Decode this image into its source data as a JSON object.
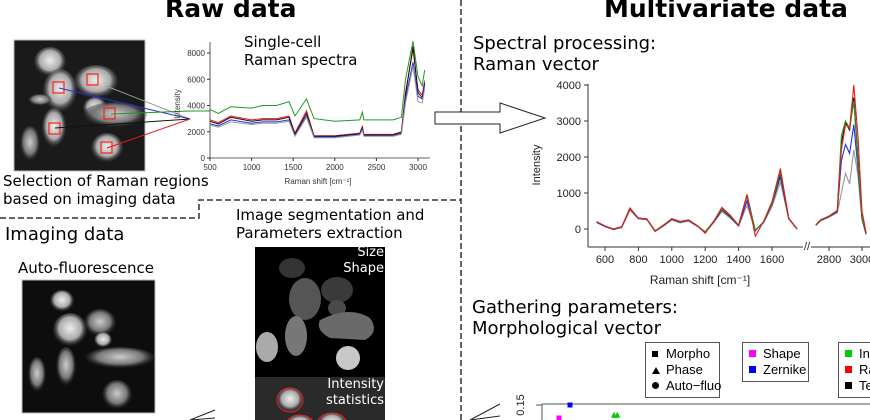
{
  "titles": {
    "raw": "Raw data",
    "multivariate": "Multivariate data"
  },
  "raw": {
    "selection_caption_1": "Selection of Raman regions",
    "selection_caption_2": "based on imaging data",
    "spectra_caption_1": "Single-cell",
    "spectra_caption_2": "Raman spectra"
  },
  "imaging": {
    "heading": "Imaging data",
    "autofluo_label": "Auto-fluorescence",
    "segmentation_1": "Image segmentation and",
    "segmentation_2": "Parameters extraction",
    "size_label": "Size",
    "shape_label": "Shape",
    "intensity_label": "Intensity",
    "statistics_label": "statistics"
  },
  "multivariate": {
    "spectral_1": "Spectral processing:",
    "spectral_2": "Raman vector",
    "gathering_1": "Gathering parameters:",
    "gathering_2": "Morphological vector",
    "legend_markers": [
      "Morpho",
      "Phase",
      "Auto−fluo"
    ],
    "legend_groups": [
      {
        "label": "Shape",
        "color": "#ff00ff"
      },
      {
        "label": "Zernike",
        "color": "#0000ff"
      }
    ],
    "legend_groups_2": [
      {
        "label": "In",
        "color": "#00cc00"
      },
      {
        "label": "Ra",
        "color": "#ff0000"
      },
      {
        "label": "Te",
        "color": "#000000"
      }
    ]
  },
  "colors": {
    "red": "#e8191c",
    "blue": "#2233dd",
    "green": "#229922",
    "black": "#111111",
    "gray": "#999999",
    "roi": "#ff2020"
  },
  "chart_data": [
    {
      "type": "line",
      "xlabel": "Raman shift [cm⁻¹]",
      "ylabel": "Intensity",
      "xlim": [
        500,
        3100
      ],
      "ylim": [
        0,
        9000
      ],
      "xticks": [
        500,
        1000,
        1500,
        2000,
        2500,
        3000
      ],
      "yticks": [
        0,
        2000,
        4000,
        6000,
        8000
      ],
      "x": [
        500,
        600,
        750,
        1000,
        1130,
        1300,
        1450,
        1520,
        1660,
        1750,
        2000,
        2300,
        2330,
        2350,
        2700,
        2800,
        2850,
        2940,
        3000,
        3050,
        3080
      ],
      "series": [
        {
          "color": "green",
          "values": [
            3700,
            3400,
            3900,
            3800,
            4000,
            4000,
            4300,
            3200,
            4500,
            3000,
            2800,
            2900,
            3500,
            2900,
            2900,
            3100,
            6000,
            8900,
            6200,
            5500,
            6700
          ]
        },
        {
          "color": "red",
          "values": [
            2900,
            2700,
            3200,
            2900,
            3000,
            3000,
            3200,
            1900,
            3600,
            1700,
            1700,
            1900,
            2400,
            1800,
            1800,
            2000,
            5000,
            8300,
            5200,
            4800,
            5900
          ]
        },
        {
          "color": "black",
          "values": [
            2800,
            2600,
            3100,
            2800,
            2900,
            2900,
            3100,
            1800,
            3400,
            1650,
            1650,
            1850,
            2300,
            1750,
            1750,
            1950,
            4800,
            8500,
            5000,
            4600,
            5700
          ]
        },
        {
          "color": "blue",
          "values": [
            2600,
            2450,
            2900,
            2650,
            2750,
            2750,
            2900,
            1700,
            3200,
            1600,
            1600,
            1800,
            2200,
            1700,
            1700,
            1850,
            4500,
            7300,
            4700,
            4500,
            5600
          ]
        },
        {
          "color": "gray",
          "values": [
            2500,
            2350,
            2750,
            2550,
            2650,
            2650,
            2800,
            1650,
            3100,
            1550,
            1550,
            1750,
            2100,
            1650,
            1650,
            1800,
            4200,
            7000,
            4300,
            4200,
            5300
          ]
        }
      ]
    },
    {
      "type": "line",
      "xlabel": "Raman shift [cm⁻¹]",
      "ylabel": "Intensity",
      "ylim": [
        -500,
        4000
      ],
      "axis_break": [
        1760,
        2720
      ],
      "xticks": [
        600,
        800,
        1000,
        1200,
        1400,
        1600,
        2800,
        3000
      ],
      "yticks": [
        0,
        1000,
        2000,
        3000,
        4000
      ],
      "x": [
        550,
        600,
        650,
        700,
        750,
        800,
        850,
        900,
        950,
        1000,
        1050,
        1100,
        1150,
        1200,
        1250,
        1300,
        1350,
        1400,
        1450,
        1500,
        1550,
        1600,
        1650,
        1700,
        1750,
        2720,
        2750,
        2800,
        2850,
        2875,
        2900,
        2925,
        2950,
        2975,
        3000,
        3025
      ],
      "series": [
        {
          "color": "gray",
          "values": [
            180,
            60,
            -20,
            40,
            520,
            280,
            260,
            -70,
            80,
            250,
            170,
            220,
            80,
            -100,
            170,
            480,
            300,
            80,
            650,
            -30,
            170,
            620,
            1300,
            280,
            0,
            100,
            230,
            330,
            450,
            1000,
            1550,
            1250,
            2200,
            1500,
            250,
            -150
          ]
        },
        {
          "color": "blue",
          "values": [
            190,
            70,
            -10,
            50,
            560,
            290,
            270,
            -60,
            90,
            270,
            190,
            240,
            90,
            -90,
            190,
            530,
            330,
            90,
            780,
            -40,
            190,
            680,
            1450,
            290,
            0,
            100,
            240,
            340,
            480,
            1900,
            2350,
            2100,
            2900,
            1700,
            280,
            -150
          ]
        },
        {
          "color": "black",
          "values": [
            200,
            80,
            0,
            60,
            580,
            300,
            280,
            -50,
            100,
            280,
            200,
            250,
            100,
            -80,
            200,
            550,
            350,
            100,
            930,
            -50,
            200,
            700,
            1550,
            300,
            0,
            110,
            250,
            350,
            500,
            2400,
            2950,
            2750,
            3650,
            2000,
            300,
            -120
          ]
        },
        {
          "color": "green",
          "values": [
            200,
            80,
            0,
            60,
            580,
            300,
            280,
            -50,
            110,
            280,
            200,
            250,
            100,
            -80,
            210,
            560,
            360,
            100,
            960,
            -40,
            200,
            700,
            1600,
            300,
            0,
            110,
            260,
            360,
            520,
            2600,
            3000,
            2800,
            3550,
            1900,
            300,
            -120
          ]
        },
        {
          "color": "red",
          "values": [
            200,
            80,
            0,
            60,
            580,
            300,
            280,
            -60,
            100,
            290,
            210,
            250,
            100,
            -120,
            200,
            600,
            380,
            100,
            950,
            -200,
            210,
            760,
            1680,
            300,
            0,
            100,
            250,
            350,
            500,
            2200,
            2900,
            2800,
            4000,
            2600,
            500,
            -100
          ]
        }
      ]
    },
    {
      "type": "scatter",
      "yticks": [
        0.15
      ],
      "points": [
        {
          "x": 1,
          "y": 0.13,
          "color": "#ff00ff",
          "marker": "square"
        },
        {
          "x": 2,
          "y": 0.15,
          "color": "#0000ff",
          "marker": "square"
        },
        {
          "x": 6,
          "y": 0.135,
          "color": "#00cc00",
          "marker": "triangle"
        },
        {
          "x": 6.3,
          "y": 0.135,
          "color": "#00cc00",
          "marker": "triangle"
        }
      ]
    }
  ]
}
